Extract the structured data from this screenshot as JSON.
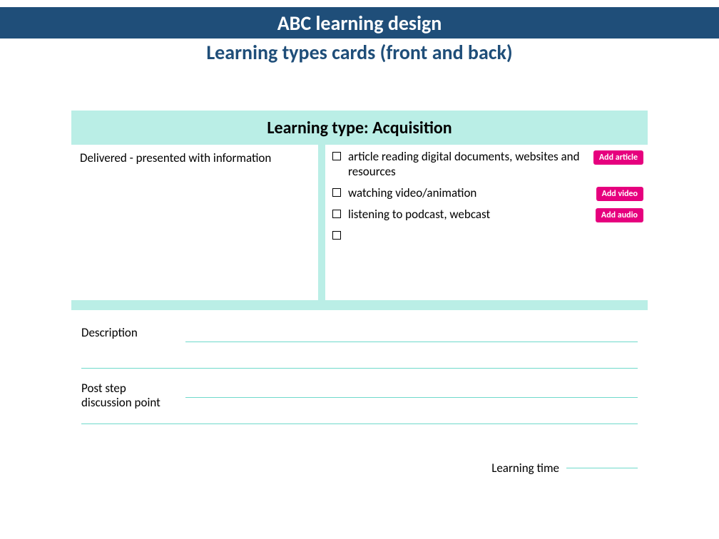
{
  "colors": {
    "banner_bg": "#1f4e79",
    "subtitle": "#1f4e79",
    "mint": "#baeee6",
    "pill": "#e6007e",
    "rule": "#6fd9cb",
    "text": "#000000",
    "white": "#ffffff"
  },
  "header": {
    "banner": "ABC learning design",
    "subtitle": "Learning types cards (front and back)"
  },
  "card": {
    "title": "Learning type: Acquisition",
    "left_text": "Delivered - presented with information",
    "activities": [
      {
        "text": "article reading digital documents, websites and resources",
        "button": "Add article"
      },
      {
        "text": "watching video/animation",
        "button": "Add video"
      },
      {
        "text": "listening to podcast, webcast",
        "button": "Add audio"
      },
      {
        "text": "",
        "button": ""
      }
    ],
    "description_label": "Description",
    "poststep_label": "Post step\ndiscussion point",
    "learning_time_label": "Learning time"
  }
}
